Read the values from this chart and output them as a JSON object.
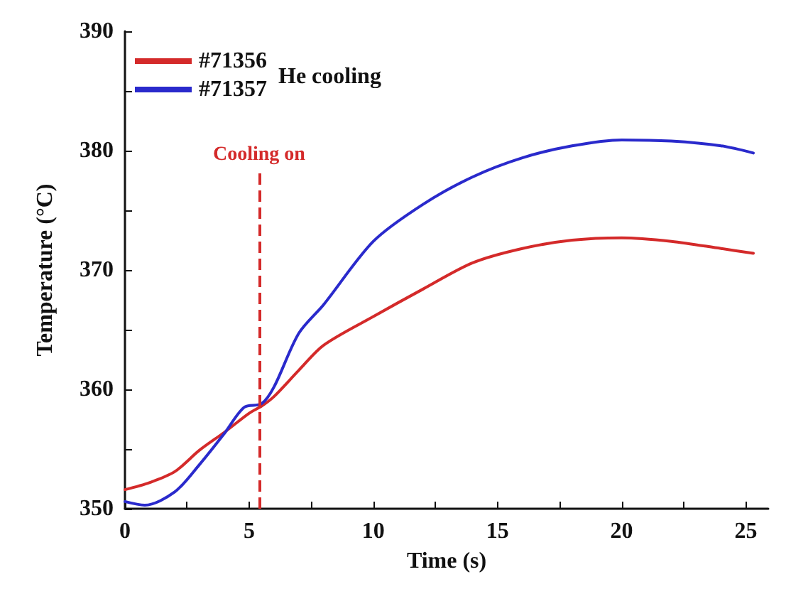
{
  "chart_data": {
    "type": "line",
    "xlabel": "Time (s)",
    "ylabel": "Temperature (°C)",
    "legend_title": "He cooling",
    "legend": "top left",
    "grid": false,
    "marker": "none",
    "line_style": "solid",
    "xlim": [
      0,
      25.9
    ],
    "xticks": [
      0,
      5,
      10,
      15,
      20,
      25
    ],
    "ylim": [
      350,
      390
    ],
    "yticks": [
      350,
      360,
      370,
      380,
      390
    ],
    "series": [
      {
        "name": "#71356",
        "color": "#d42a2a",
        "x": [
          0,
          1,
          2,
          3,
          4,
          5,
          5.5,
          6,
          7,
          8,
          10,
          12,
          14,
          16,
          18,
          20,
          22,
          24,
          25.3
        ],
        "values": [
          351.6,
          352.2,
          353.1,
          354.9,
          356.4,
          358.0,
          358.6,
          359.4,
          361.6,
          363.7,
          366.1,
          368.4,
          370.6,
          371.8,
          372.5,
          372.7,
          372.4,
          371.8,
          371.4
        ]
      },
      {
        "name": "#71357",
        "color": "#2a2acc",
        "x": [
          0,
          0.8,
          2,
          3,
          4,
          4.8,
          5.5,
          6,
          7,
          8,
          10,
          12,
          14,
          16,
          18,
          20,
          22,
          24,
          25.3
        ],
        "values": [
          350.6,
          350.3,
          351.4,
          353.7,
          356.3,
          358.5,
          358.8,
          360.2,
          364.7,
          367.1,
          372.4,
          375.5,
          377.8,
          379.4,
          380.4,
          380.9,
          380.8,
          380.4,
          379.8
        ]
      }
    ],
    "ref_lines": [
      {
        "axis": "x",
        "value": 5.4,
        "label": "Cooling on",
        "color": "#d42a2a",
        "line_style": "dashed"
      }
    ]
  }
}
